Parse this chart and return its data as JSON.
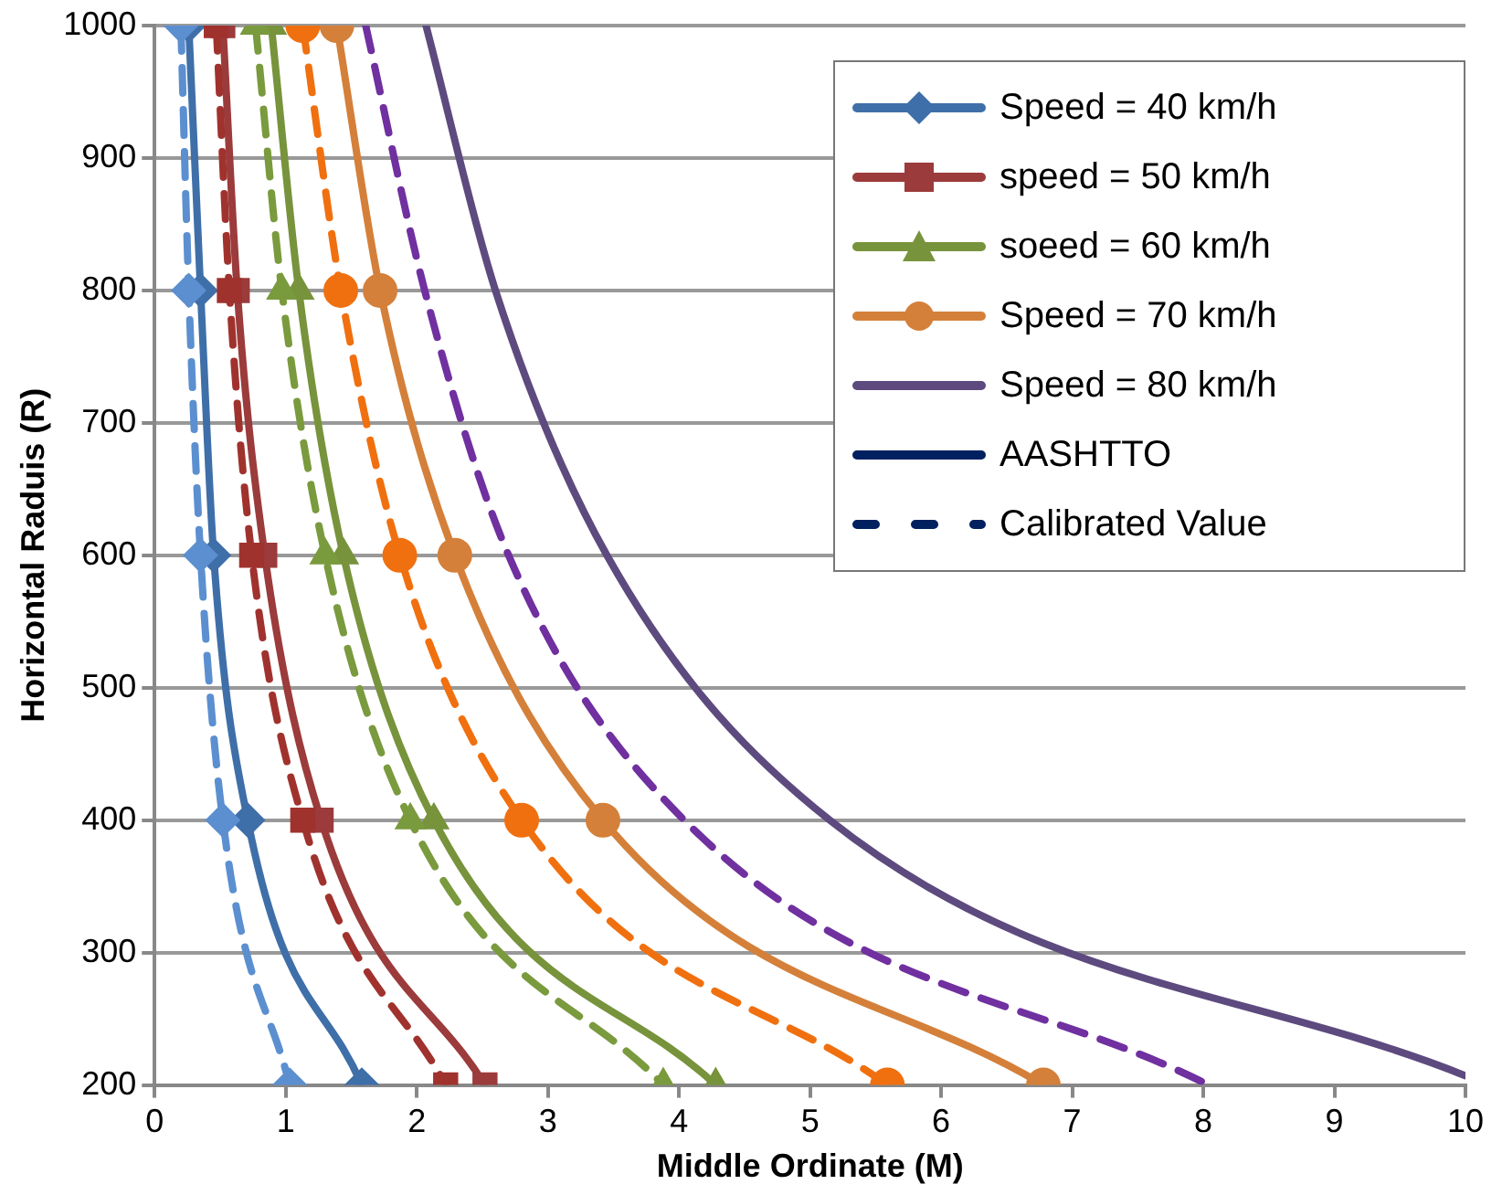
{
  "chart_data": {
    "type": "line",
    "xlabel": "Middle Ordinate (M)",
    "ylabel": "Horizontal Raduis (R)",
    "xlim": [
      0,
      10
    ],
    "xticks": [
      0,
      1,
      2,
      3,
      4,
      5,
      6,
      7,
      8,
      9,
      10
    ],
    "ylim": [
      200,
      1000
    ],
    "yticks": [
      200,
      300,
      400,
      500,
      600,
      700,
      800,
      900,
      1000
    ],
    "grid": "y",
    "legend": "top right",
    "series": [
      {
        "name": "Speed = 40 km/h",
        "color": "#3f6fa8",
        "marker": "diamond",
        "line_style": "solid",
        "x": [
          0.26,
          0.35,
          0.45,
          0.71,
          1.58
        ],
        "values": [
          1000,
          800,
          600,
          400,
          200
        ]
      },
      {
        "color": "#5b8fd0",
        "marker": "diamond",
        "line_style": "dashed",
        "x": [
          0.2,
          0.26,
          0.35,
          0.52,
          1.03
        ],
        "values": [
          1000,
          800,
          600,
          400,
          200
        ]
      },
      {
        "name": "speed = 50 km/h",
        "color": "#9b3b3b",
        "marker": "square",
        "line_style": "solid",
        "x": [
          0.52,
          0.63,
          0.84,
          1.27,
          2.52
        ],
        "values": [
          1000,
          800,
          600,
          400,
          200
        ]
      },
      {
        "color": "#a0322e",
        "marker": "square",
        "line_style": "dashed",
        "x": [
          0.47,
          0.57,
          0.74,
          1.13,
          2.22
        ],
        "values": [
          1000,
          800,
          600,
          400,
          200
        ]
      },
      {
        "name": "soeed = 60 km/h",
        "color": "#77933c",
        "marker": "triangle",
        "line_style": "solid",
        "x": [
          0.89,
          1.1,
          1.44,
          2.13,
          4.28
        ],
        "values": [
          1000,
          800,
          600,
          400,
          200
        ]
      },
      {
        "color": "#7a9a3e",
        "marker": "triangle",
        "line_style": "dashed",
        "x": [
          0.77,
          0.97,
          1.3,
          1.95,
          3.88
        ],
        "values": [
          1000,
          800,
          600,
          400,
          200
        ]
      },
      {
        "name": "Speed = 70 km/h",
        "color": "#d4803a",
        "marker": "circle",
        "line_style": "solid",
        "x": [
          1.39,
          1.72,
          2.29,
          3.42,
          6.78
        ],
        "values": [
          1000,
          800,
          600,
          400,
          200
        ]
      },
      {
        "color": "#f07010",
        "marker": "circle",
        "line_style": "dashed",
        "x": [
          1.13,
          1.42,
          1.87,
          2.8,
          5.59
        ],
        "values": [
          1000,
          800,
          600,
          400,
          200
        ]
      },
      {
        "name": "Speed = 80 km/h",
        "color": "#5d4a7e",
        "marker": "none",
        "line_style": "solid",
        "x": [
          2.07,
          2.6,
          3.45,
          5.15,
          10
        ],
        "values": [
          1000,
          800,
          600,
          400,
          207
        ]
      },
      {
        "color": "#7030a0",
        "marker": "none",
        "line_style": "dashed",
        "x": [
          1.61,
          2.06,
          2.7,
          4.04,
          8.04
        ],
        "values": [
          1000,
          800,
          600,
          400,
          200
        ]
      },
      {
        "name": "AASHTTO",
        "color": "#002060",
        "marker": "none",
        "line_style": "solid"
      },
      {
        "name": "Calibrated Value",
        "color": "#002060",
        "marker": "none",
        "line_style": "dashed"
      }
    ]
  }
}
